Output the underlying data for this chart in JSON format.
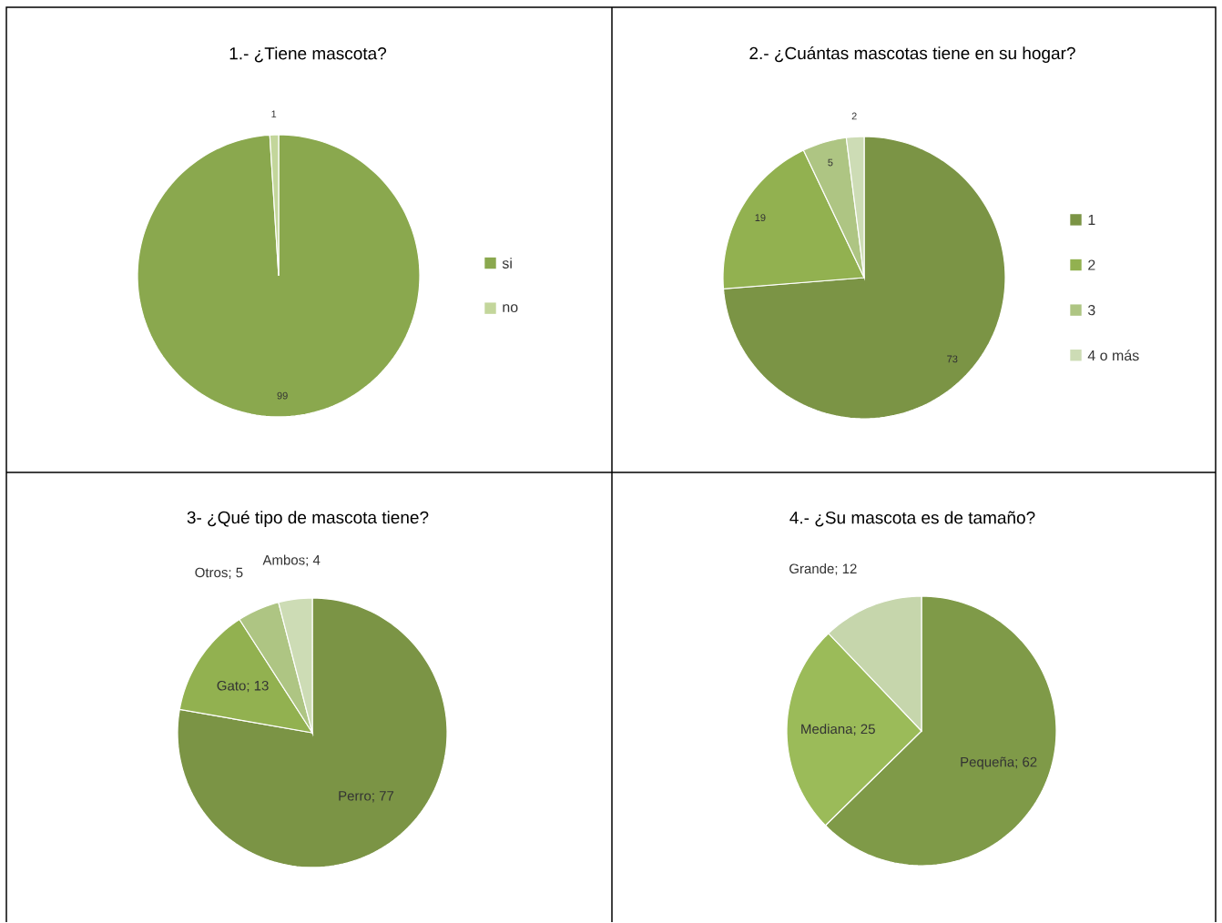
{
  "chart_data": [
    {
      "type": "pie",
      "title": "1.- ¿Tiene mascota?",
      "categories": [
        "si",
        "no"
      ],
      "values": [
        99,
        1
      ],
      "colors": [
        "#8aa84e",
        "#c3d69b"
      ],
      "data_labels": true,
      "legend": "right"
    },
    {
      "type": "pie",
      "title": "2.- ¿Cuántas mascotas tiene en su hogar?",
      "categories": [
        "1",
        "2",
        "3",
        "4 o más"
      ],
      "values": [
        73,
        19,
        5,
        2
      ],
      "colors": [
        "#7b9445",
        "#92b150",
        "#aec583",
        "#cddcb5"
      ],
      "data_labels": true,
      "legend": "right"
    },
    {
      "type": "pie",
      "title": "3- ¿Qué tipo de mascota tiene?",
      "categories": [
        null,
        null,
        null,
        null
      ],
      "values": [
        77,
        13,
        5,
        4
      ],
      "colors": [
        "#7b9445",
        "#92b150",
        "#aec583",
        "#cddcb5"
      ],
      "value_labels": [
        "Perro; 77",
        "Gato; 13",
        "Otros; 5",
        "Ambos; 4"
      ],
      "legend": false
    },
    {
      "type": "pie",
      "title": "4.- ¿Su mascota es de tamaño?",
      "categories": [
        null,
        null,
        null
      ],
      "values": [
        62,
        25,
        12
      ],
      "colors": [
        "#7f9a48",
        "#9bbb59",
        "#c6d6ac"
      ],
      "value_labels": [
        "Pequeña; 62",
        "Mediana; 25",
        "Grande; 12"
      ],
      "legend": false
    }
  ]
}
